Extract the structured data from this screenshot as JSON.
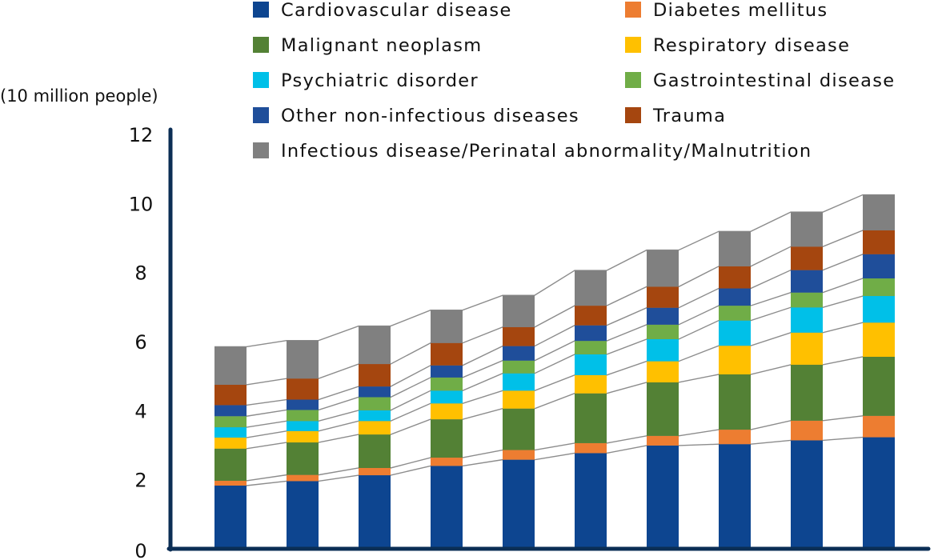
{
  "chart_data": {
    "type": "bar",
    "stacked": true,
    "connector_lines": true,
    "title": "",
    "xlabel": "",
    "ylabel": "(10 million people)",
    "ylim": [
      0,
      12
    ],
    "yticks": [
      0,
      2,
      4,
      6,
      8,
      10,
      12
    ],
    "grid": false,
    "legend_position": "top",
    "categories": [
      "",
      "",
      "",
      "",
      "",
      "",
      "",
      "",
      "",
      ""
    ],
    "series": [
      {
        "name": "Cardiovascular disease",
        "color": "#0d4590",
        "values": [
          1.83,
          1.96,
          2.13,
          2.4,
          2.58,
          2.77,
          2.99,
          3.03,
          3.14,
          3.23
        ]
      },
      {
        "name": "Diabetes mellitus",
        "color": "#ed7d31",
        "values": [
          0.14,
          0.18,
          0.21,
          0.24,
          0.28,
          0.29,
          0.28,
          0.42,
          0.57,
          0.62
        ]
      },
      {
        "name": "Malignant neoplasm",
        "color": "#538135",
        "values": [
          0.93,
          0.94,
          0.97,
          1.11,
          1.2,
          1.44,
          1.55,
          1.6,
          1.62,
          1.71
        ]
      },
      {
        "name": "Respiratory disease",
        "color": "#ffc000",
        "values": [
          0.32,
          0.33,
          0.39,
          0.46,
          0.52,
          0.53,
          0.61,
          0.83,
          0.93,
          0.99
        ]
      },
      {
        "name": "Psychiatric disorder",
        "color": "#00c0e8",
        "values": [
          0.3,
          0.29,
          0.31,
          0.37,
          0.5,
          0.6,
          0.64,
          0.73,
          0.73,
          0.77
        ]
      },
      {
        "name": "Gastrointestinal disease",
        "color": "#70ad47",
        "values": [
          0.32,
          0.32,
          0.38,
          0.38,
          0.37,
          0.39,
          0.42,
          0.43,
          0.43,
          0.51
        ]
      },
      {
        "name": "Other non-infectious diseases",
        "color": "#1f4e9a",
        "values": [
          0.32,
          0.3,
          0.31,
          0.35,
          0.42,
          0.45,
          0.49,
          0.5,
          0.65,
          0.7
        ]
      },
      {
        "name": "Trauma",
        "color": "#a5460f",
        "values": [
          0.59,
          0.61,
          0.65,
          0.65,
          0.55,
          0.57,
          0.61,
          0.64,
          0.68,
          0.69
        ]
      },
      {
        "name": "Infectious disease/Perinatal abnormality/Malnutrition",
        "color": "#808080",
        "values": [
          1.1,
          1.1,
          1.1,
          0.95,
          0.92,
          1.02,
          1.06,
          1.01,
          1.0,
          1.03
        ]
      }
    ]
  }
}
